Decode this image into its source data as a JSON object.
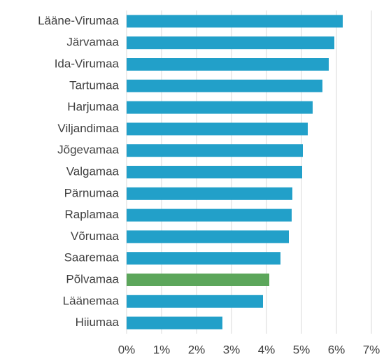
{
  "chart_data": {
    "type": "barh",
    "categories": [
      "Lääne-Virumaa",
      "Järvamaa",
      "Ida-Virumaa",
      "Tartumaa",
      "Harjumaa",
      "Viljandimaa",
      "Jõgevamaa",
      "Valgamaa",
      "Pärnumaa",
      "Raplamaa",
      "Võrumaa",
      "Saaremaa",
      "Põlvamaa",
      "Läänemaa",
      "Hiiumaa"
    ],
    "values": [
      6.18,
      5.94,
      5.78,
      5.6,
      5.32,
      5.18,
      5.04,
      5.02,
      4.74,
      4.72,
      4.64,
      4.4,
      4.08,
      3.9,
      2.74
    ],
    "colors": [
      "#22a0c9",
      "#22a0c9",
      "#22a0c9",
      "#22a0c9",
      "#22a0c9",
      "#22a0c9",
      "#22a0c9",
      "#22a0c9",
      "#22a0c9",
      "#22a0c9",
      "#22a0c9",
      "#22a0c9",
      "#5ca65b",
      "#22a0c9",
      "#22a0c9"
    ],
    "xlim": [
      0,
      7
    ],
    "xticks": [
      {
        "value": 0,
        "label": "0%"
      },
      {
        "value": 1,
        "label": "1%"
      },
      {
        "value": 2,
        "label": "2%"
      },
      {
        "value": 3,
        "label": "3%"
      },
      {
        "value": 4,
        "label": "4%"
      },
      {
        "value": 5,
        "label": "5%"
      },
      {
        "value": 6,
        "label": "6%"
      },
      {
        "value": 7,
        "label": "7%"
      }
    ],
    "grid": true
  }
}
